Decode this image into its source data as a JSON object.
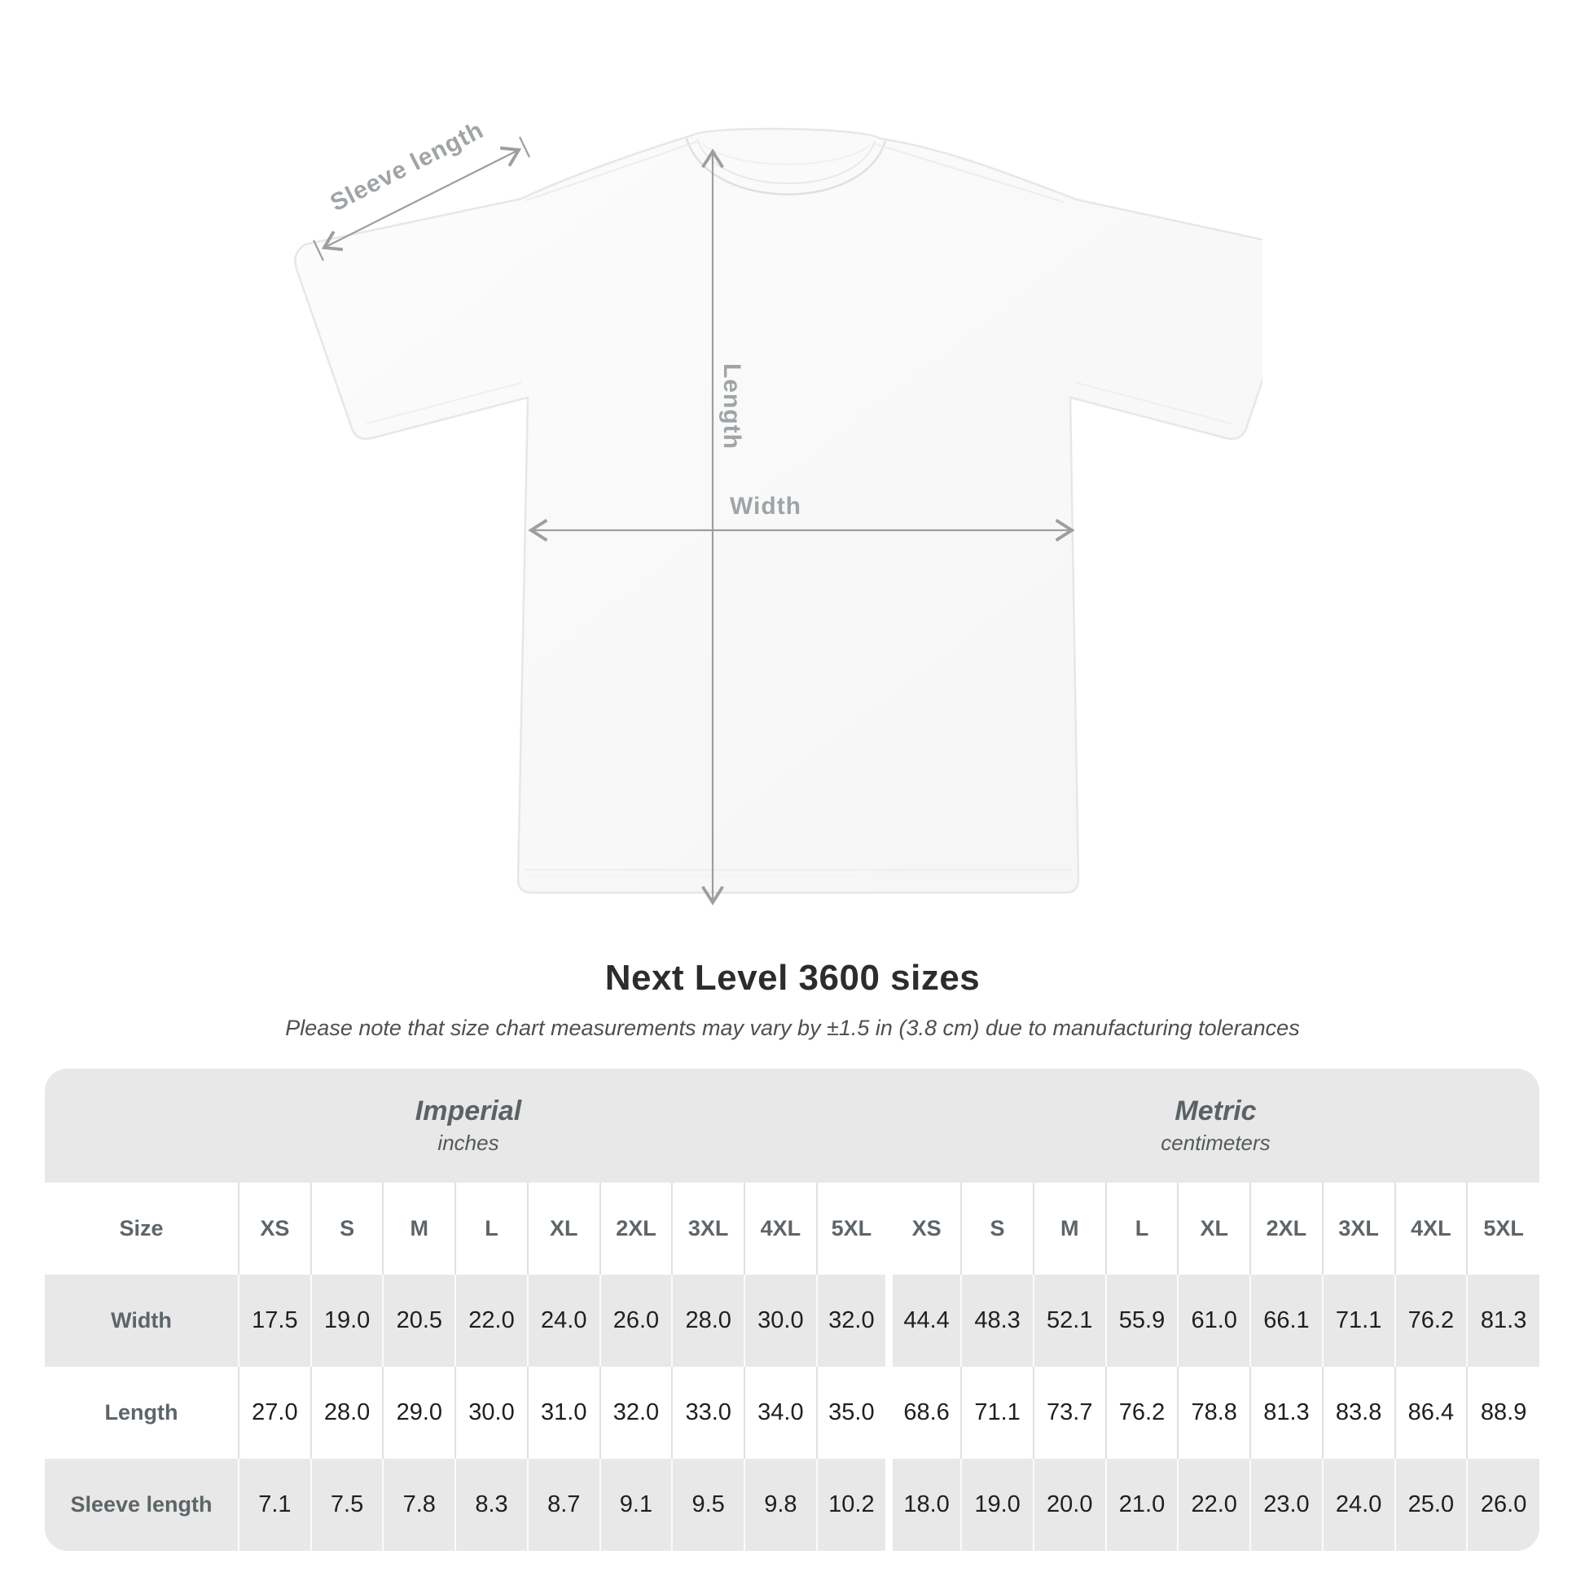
{
  "diagram": {
    "sleeve_label": "Sleeve length",
    "length_label": "Length",
    "width_label": "Width"
  },
  "title": "Next Level 3600 sizes",
  "subtitle": "Please note that size chart measurements may vary by ±1.5 in (3.8 cm) due to manufacturing tolerances",
  "table": {
    "unit_sections": [
      {
        "name": "Imperial",
        "unit": "inches"
      },
      {
        "name": "Metric",
        "unit": "centimeters"
      }
    ],
    "size_header_label": "Size",
    "sizes": [
      "XS",
      "S",
      "M",
      "L",
      "XL",
      "2XL",
      "3XL",
      "4XL",
      "5XL"
    ],
    "rows": [
      {
        "label": "Width",
        "imperial": [
          "17.5",
          "19.0",
          "20.5",
          "22.0",
          "24.0",
          "26.0",
          "28.0",
          "30.0",
          "32.0"
        ],
        "metric": [
          "44.4",
          "48.3",
          "52.1",
          "55.9",
          "61.0",
          "66.1",
          "71.1",
          "76.2",
          "81.3"
        ]
      },
      {
        "label": "Length",
        "imperial": [
          "27.0",
          "28.0",
          "29.0",
          "30.0",
          "31.0",
          "32.0",
          "33.0",
          "34.0",
          "35.0"
        ],
        "metric": [
          "68.6",
          "71.1",
          "73.7",
          "76.2",
          "78.8",
          "81.3",
          "83.8",
          "86.4",
          "88.9"
        ]
      },
      {
        "label": "Sleeve length",
        "imperial": [
          "7.1",
          "7.5",
          "7.8",
          "8.3",
          "8.7",
          "9.1",
          "9.5",
          "9.8",
          "10.2"
        ],
        "metric": [
          "18.0",
          "19.0",
          "20.0",
          "21.0",
          "22.0",
          "23.0",
          "24.0",
          "25.0",
          "26.0"
        ]
      }
    ]
  },
  "chart_data": {
    "type": "table",
    "title": "Next Level 3600 sizes",
    "columns": [
      "XS",
      "S",
      "M",
      "L",
      "XL",
      "2XL",
      "3XL",
      "4XL",
      "5XL"
    ],
    "series": [
      {
        "name": "Width (in)",
        "values": [
          17.5,
          19.0,
          20.5,
          22.0,
          24.0,
          26.0,
          28.0,
          30.0,
          32.0
        ]
      },
      {
        "name": "Length (in)",
        "values": [
          27.0,
          28.0,
          29.0,
          30.0,
          31.0,
          32.0,
          33.0,
          34.0,
          35.0
        ]
      },
      {
        "name": "Sleeve length (in)",
        "values": [
          7.1,
          7.5,
          7.8,
          8.3,
          8.7,
          9.1,
          9.5,
          9.8,
          10.2
        ]
      },
      {
        "name": "Width (cm)",
        "values": [
          44.4,
          48.3,
          52.1,
          55.9,
          61.0,
          66.1,
          71.1,
          76.2,
          81.3
        ]
      },
      {
        "name": "Length (cm)",
        "values": [
          68.6,
          71.1,
          73.7,
          76.2,
          78.8,
          81.3,
          83.8,
          86.4,
          88.9
        ]
      },
      {
        "name": "Sleeve length (cm)",
        "values": [
          18.0,
          19.0,
          20.0,
          21.0,
          22.0,
          23.0,
          24.0,
          25.0,
          26.0
        ]
      }
    ]
  },
  "colors": {
    "card_background": "#e8e8e8",
    "row_white": "#ffffff",
    "number_text": "#1f1f1f",
    "label_text": "#5e6569",
    "arrow_gray": "#9e9e9e",
    "measure_label_gray": "#a0a4a6"
  }
}
